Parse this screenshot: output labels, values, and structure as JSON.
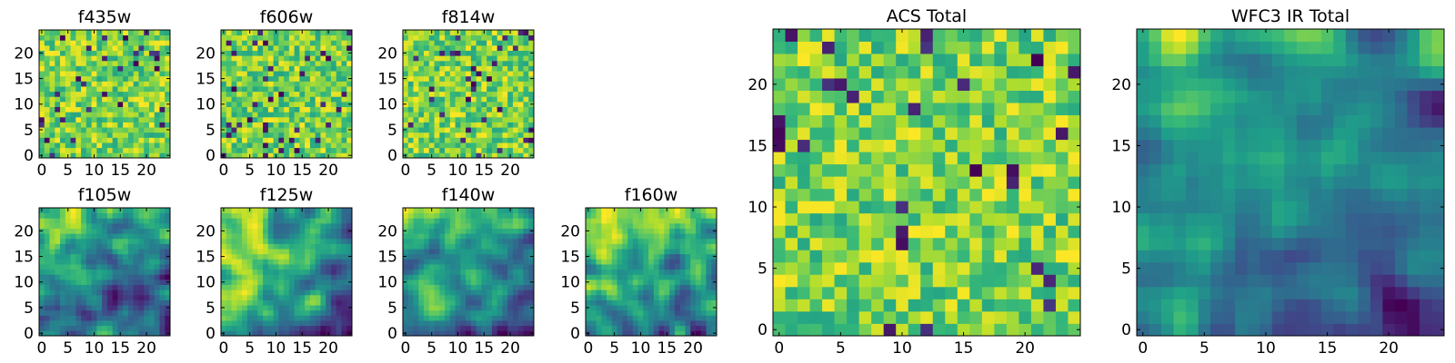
{
  "chart_data": [
    {
      "type": "heatmap",
      "title": "f435w",
      "grid_size": 25,
      "xticks": [
        0,
        5,
        10,
        15,
        20
      ],
      "yticks": [
        0,
        5,
        10,
        15,
        20
      ],
      "colormap": "viridis",
      "texture": "noise",
      "seed": 11
    },
    {
      "type": "heatmap",
      "title": "f606w",
      "grid_size": 25,
      "xticks": [
        0,
        5,
        10,
        15,
        20
      ],
      "yticks": [
        0,
        5,
        10,
        15,
        20
      ],
      "colormap": "viridis",
      "texture": "noise",
      "seed": 23
    },
    {
      "type": "heatmap",
      "title": "f814w",
      "grid_size": 25,
      "xticks": [
        0,
        5,
        10,
        15,
        20
      ],
      "yticks": [
        0,
        5,
        10,
        15,
        20
      ],
      "colormap": "viridis",
      "texture": "noise",
      "seed": 37
    },
    {
      "type": "heatmap",
      "title": "f105w",
      "grid_size": 25,
      "xticks": [
        0,
        5,
        10,
        15,
        20
      ],
      "yticks": [
        0,
        5,
        10,
        15,
        20
      ],
      "colormap": "viridis",
      "texture": "smooth",
      "seed": 41
    },
    {
      "type": "heatmap",
      "title": "f125w",
      "grid_size": 25,
      "xticks": [
        0,
        5,
        10,
        15,
        20
      ],
      "yticks": [
        0,
        5,
        10,
        15,
        20
      ],
      "colormap": "viridis",
      "texture": "smooth",
      "seed": 53
    },
    {
      "type": "heatmap",
      "title": "f140w",
      "grid_size": 25,
      "xticks": [
        0,
        5,
        10,
        15,
        20
      ],
      "yticks": [
        0,
        5,
        10,
        15,
        20
      ],
      "colormap": "viridis",
      "texture": "smooth",
      "seed": 67
    },
    {
      "type": "heatmap",
      "title": "f160w",
      "grid_size": 25,
      "xticks": [
        0,
        5,
        10,
        15,
        20
      ],
      "yticks": [
        0,
        5,
        10,
        15,
        20
      ],
      "colormap": "viridis",
      "texture": "smooth",
      "seed": 79
    },
    {
      "type": "heatmap",
      "title": "ACS Total",
      "grid_size": 25,
      "xticks": [
        0,
        5,
        10,
        15,
        20
      ],
      "yticks": [
        0,
        5,
        10,
        15,
        20
      ],
      "colormap": "viridis",
      "texture": "noise",
      "seed": 97
    },
    {
      "type": "heatmap",
      "title": "WFC3 IR Total",
      "grid_size": 25,
      "xticks": [
        0,
        5,
        10,
        15,
        20
      ],
      "yticks": [
        0,
        5,
        10,
        15,
        20
      ],
      "colormap": "viridis",
      "texture": "smooth",
      "seed": 113
    }
  ]
}
